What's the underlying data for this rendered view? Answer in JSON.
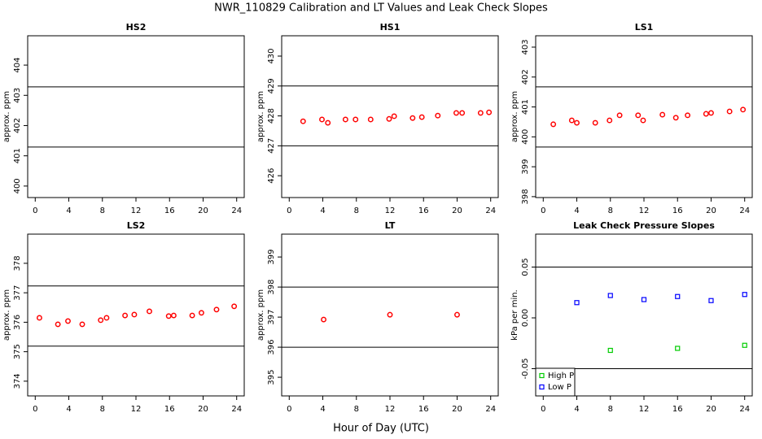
{
  "title": "NWR_110829  Calibration and LT Values and Leak Check Slopes",
  "xlabel": "Hour of Day (UTC)",
  "chart_data": [
    {
      "type": "scatter",
      "title": "HS2",
      "ylabel": "approx. ppm",
      "marker": "circle",
      "color": "#ff0000",
      "x": [],
      "values": [],
      "xlim": [
        -0.9,
        24.9
      ],
      "xticks": [
        0,
        4,
        8,
        12,
        16,
        20,
        24
      ],
      "ylim": [
        399.62,
        404.97
      ],
      "yticks": [
        400,
        401,
        402,
        403,
        404
      ],
      "hlines": [
        403.28,
        401.29
      ]
    },
    {
      "type": "scatter",
      "title": "HS1",
      "ylabel": "approx. ppm",
      "marker": "circle",
      "color": "#ff0000",
      "x": [
        1.65,
        3.9,
        4.6,
        6.7,
        7.9,
        9.7,
        11.9,
        12.5,
        14.7,
        15.8,
        17.7,
        19.9,
        20.6,
        22.8,
        23.8
      ],
      "values": [
        427.82,
        427.88,
        427.77,
        427.88,
        427.88,
        427.88,
        427.9,
        427.99,
        427.93,
        427.96,
        428.01,
        428.1,
        428.1,
        428.1,
        428.12
      ],
      "xlim": [
        -0.9,
        24.9
      ],
      "xticks": [
        0,
        4,
        8,
        12,
        16,
        20,
        24
      ],
      "ylim": [
        425.27,
        430.68
      ],
      "yticks": [
        426,
        427,
        428,
        429,
        430
      ],
      "hlines": [
        429,
        427
      ]
    },
    {
      "type": "scatter",
      "title": "LS1",
      "ylabel": "approx. ppm",
      "marker": "circle",
      "color": "#ff0000",
      "x": [
        1.2,
        3.4,
        4.0,
        6.2,
        7.9,
        9.1,
        11.3,
        11.9,
        14.2,
        15.8,
        17.2,
        19.4,
        20.0,
        22.2,
        23.8
      ],
      "values": [
        400.42,
        400.55,
        400.47,
        400.47,
        400.55,
        400.72,
        400.72,
        400.55,
        400.74,
        400.64,
        400.72,
        400.77,
        400.8,
        400.85,
        400.91
      ],
      "xlim": [
        -0.9,
        24.9
      ],
      "xticks": [
        0,
        4,
        8,
        12,
        16,
        20,
        24
      ],
      "ylim": [
        397.97,
        403.38
      ],
      "yticks": [
        398,
        399,
        400,
        401,
        402,
        403
      ],
      "hlines": [
        401.67,
        399.66
      ]
    },
    {
      "type": "scatter",
      "title": "LS2",
      "ylabel": "approx. ppm",
      "marker": "circle",
      "color": "#ff0000",
      "x": [
        0.5,
        2.7,
        3.9,
        5.6,
        7.8,
        8.5,
        10.7,
        11.8,
        13.6,
        15.9,
        16.5,
        18.7,
        19.8,
        21.6,
        23.7
      ],
      "values": [
        376.15,
        375.93,
        376.04,
        375.93,
        376.07,
        376.15,
        376.23,
        376.26,
        376.37,
        376.21,
        376.23,
        376.23,
        376.32,
        376.43,
        376.54
      ],
      "xlim": [
        -0.9,
        24.9
      ],
      "xticks": [
        0,
        4,
        8,
        12,
        16,
        20,
        24
      ],
      "ylim": [
        373.5,
        378.99
      ],
      "yticks": [
        374,
        375,
        376,
        377,
        378
      ],
      "hlines": [
        377.23,
        375.19
      ]
    },
    {
      "type": "scatter",
      "title": "LT",
      "ylabel": "approx. ppm",
      "marker": "circle",
      "color": "#ff0000",
      "x": [
        4.1,
        12.0,
        20.0
      ],
      "values": [
        396.92,
        397.08,
        397.08
      ],
      "xlim": [
        -0.9,
        24.9
      ],
      "xticks": [
        0,
        4,
        8,
        12,
        16,
        20,
        24
      ],
      "ylim": [
        394.38,
        399.76
      ],
      "yticks": [
        395,
        396,
        397,
        398,
        399
      ],
      "hlines": [
        398,
        396
      ]
    },
    {
      "type": "scatter",
      "title": "Leak Check Pressure Slopes",
      "ylabel": "kPa per min.",
      "marker": "square",
      "legend": "bottom-left",
      "series": [
        {
          "name": "High P",
          "color": "#00cc00",
          "x": [
            8,
            16,
            24
          ],
          "values": [
            -0.032,
            -0.03,
            -0.027
          ]
        },
        {
          "name": "Low P",
          "color": "#0000ff",
          "x": [
            4,
            8,
            12,
            16,
            20,
            24
          ],
          "values": [
            0.015,
            0.022,
            0.018,
            0.021,
            0.017,
            0.023
          ]
        }
      ],
      "xlim": [
        -0.9,
        24.9
      ],
      "xticks": [
        0,
        4,
        8,
        12,
        16,
        20,
        24
      ],
      "ylim": [
        -0.0768,
        0.0824
      ],
      "yticks": [
        -0.05,
        {
          "value": 0,
          "label": "0.00"
        },
        0.05
      ],
      "hlines": [
        0.05,
        -0.05
      ]
    }
  ]
}
